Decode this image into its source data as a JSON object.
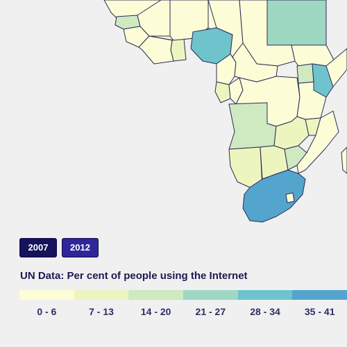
{
  "years": [
    {
      "label": "2007",
      "color": "#15135a"
    },
    {
      "label": "2012",
      "color": "#2f269a"
    }
  ],
  "title": "UN Data: Per cent of people using the Internet",
  "legend": [
    {
      "label": "0 - 6",
      "color": "#fcfdd7"
    },
    {
      "label": "7 - 13",
      "color": "#edf5bf"
    },
    {
      "label": "14 - 20",
      "color": "#cfe9c1"
    },
    {
      "label": "21 - 27",
      "color": "#9fd8c2"
    },
    {
      "label": "28 - 34",
      "color": "#6ec3cc"
    },
    {
      "label": "35 - 41",
      "color": "#54a5ce"
    }
  ],
  "map": {
    "stroke_color": "#2a2a55",
    "ocean_color": "#f0f0f0",
    "countries": [
      {
        "name": "Morocco/Algeria region",
        "class": "0 - 6"
      },
      {
        "name": "Libya",
        "class": "0 - 6"
      },
      {
        "name": "Egypt",
        "class": "21 - 27"
      },
      {
        "name": "Senegal",
        "class": "14 - 20"
      },
      {
        "name": "Mali",
        "class": "0 - 6"
      },
      {
        "name": "Niger",
        "class": "0 - 6"
      },
      {
        "name": "Chad",
        "class": "0 - 6"
      },
      {
        "name": "Sudan",
        "class": "0 - 6"
      },
      {
        "name": "Ghana",
        "class": "7 - 13"
      },
      {
        "name": "Nigeria",
        "class": "28 - 34"
      },
      {
        "name": "Cameroon",
        "class": "0 - 6"
      },
      {
        "name": "Central African Republic",
        "class": "0 - 6"
      },
      {
        "name": "Gabon",
        "class": "7 - 13"
      },
      {
        "name": "Congo",
        "class": "0 - 6"
      },
      {
        "name": "DR Congo",
        "class": "0 - 6"
      },
      {
        "name": "Uganda",
        "class": "14 - 20"
      },
      {
        "name": "Kenya",
        "class": "28 - 34"
      },
      {
        "name": "Tanzania",
        "class": "0 - 6"
      },
      {
        "name": "Angola",
        "class": "14 - 20"
      },
      {
        "name": "Zambia",
        "class": "7 - 13"
      },
      {
        "name": "Malawi",
        "class": "7 - 13"
      },
      {
        "name": "Mozambique",
        "class": "0 - 6"
      },
      {
        "name": "Namibia",
        "class": "7 - 13"
      },
      {
        "name": "Botswana",
        "class": "7 - 13"
      },
      {
        "name": "Zimbabwe",
        "class": "14 - 20"
      },
      {
        "name": "South Africa",
        "class": "35 - 41"
      },
      {
        "name": "Madagascar",
        "class": "0 - 6"
      }
    ]
  }
}
